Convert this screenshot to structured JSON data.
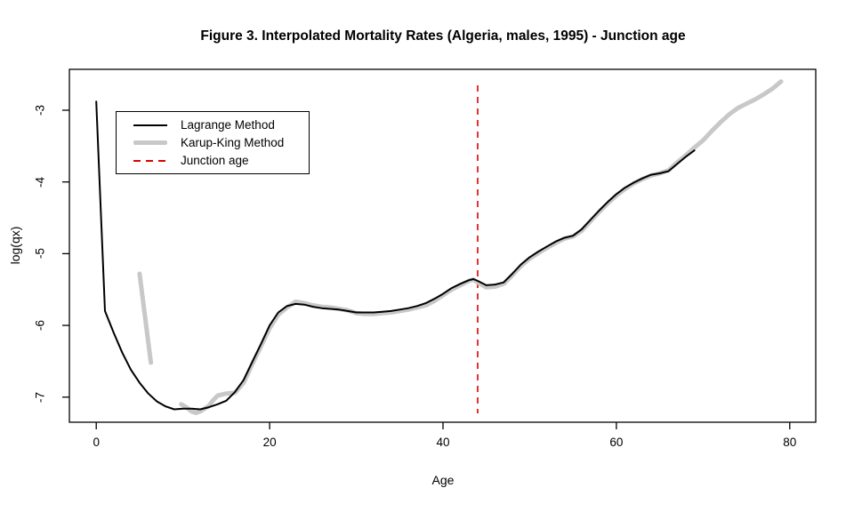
{
  "page": {
    "background": "#ffffff"
  },
  "chart_data": {
    "type": "line",
    "title": "Figure 3. Interpolated Mortality Rates (Algeria, males, 1995) - Junction age",
    "xlabel": "Age",
    "ylabel": "log(qx)",
    "x_ticks": [
      0,
      20,
      40,
      60,
      80
    ],
    "y_ticks": [
      -3,
      -4,
      -5,
      -6,
      -7
    ],
    "xlim": [
      -3.1,
      83.0
    ],
    "ylim": [
      -7.35,
      -2.43
    ],
    "grid": false,
    "legend_position": "top-left",
    "junction_age": 44,
    "colors": {
      "lagrange": "#000000",
      "karup_king": "#c8c8c8",
      "junction": "#dd0000",
      "axis": "#000000"
    },
    "series": [
      {
        "name": "Lagrange Method",
        "color": "#000000",
        "line_width": 2,
        "segments": [
          [
            [
              0,
              -2.88
            ],
            [
              1,
              -5.8
            ],
            [
              2,
              -6.1
            ],
            [
              3,
              -6.38
            ],
            [
              4,
              -6.62
            ],
            [
              5,
              -6.8
            ],
            [
              6,
              -6.95
            ],
            [
              7,
              -7.06
            ],
            [
              8,
              -7.13
            ],
            [
              9,
              -7.17
            ],
            [
              10,
              -7.16
            ],
            [
              11,
              -7.16
            ],
            [
              12,
              -7.17
            ],
            [
              13,
              -7.14
            ],
            [
              14,
              -7.1
            ],
            [
              15,
              -7.05
            ],
            [
              16,
              -6.93
            ],
            [
              17,
              -6.76
            ],
            [
              18,
              -6.51
            ],
            [
              19,
              -6.26
            ],
            [
              20,
              -6.0
            ],
            [
              21,
              -5.82
            ],
            [
              22,
              -5.73
            ],
            [
              23,
              -5.7
            ],
            [
              24,
              -5.71
            ],
            [
              25,
              -5.74
            ],
            [
              26,
              -5.76
            ],
            [
              27,
              -5.77
            ],
            [
              28,
              -5.78
            ],
            [
              29,
              -5.8
            ],
            [
              30,
              -5.82
            ],
            [
              31,
              -5.82
            ],
            [
              32,
              -5.82
            ],
            [
              33,
              -5.81
            ],
            [
              34,
              -5.8
            ],
            [
              35,
              -5.78
            ],
            [
              36,
              -5.76
            ],
            [
              37,
              -5.73
            ],
            [
              38,
              -5.69
            ],
            [
              39,
              -5.63
            ],
            [
              40,
              -5.56
            ],
            [
              41,
              -5.48
            ],
            [
              42,
              -5.42
            ],
            [
              43,
              -5.37
            ],
            [
              43.5,
              -5.355
            ],
            [
              44,
              -5.38
            ],
            [
              45,
              -5.44
            ],
            [
              46,
              -5.43
            ],
            [
              47,
              -5.4
            ],
            [
              48,
              -5.28
            ],
            [
              49,
              -5.15
            ],
            [
              50,
              -5.05
            ],
            [
              51,
              -4.97
            ],
            [
              52,
              -4.9
            ],
            [
              53,
              -4.83
            ],
            [
              54,
              -4.78
            ],
            [
              55,
              -4.75
            ],
            [
              56,
              -4.66
            ],
            [
              57,
              -4.53
            ],
            [
              58,
              -4.4
            ],
            [
              59,
              -4.28
            ],
            [
              60,
              -4.17
            ],
            [
              61,
              -4.08
            ],
            [
              62,
              -4.01
            ],
            [
              63,
              -3.95
            ],
            [
              64,
              -3.9
            ],
            [
              65,
              -3.88
            ],
            [
              66,
              -3.85
            ],
            [
              67,
              -3.75
            ],
            [
              68,
              -3.65
            ],
            [
              69,
              -3.56
            ]
          ]
        ]
      },
      {
        "name": "Karup-King Method",
        "color": "#c8c8c8",
        "line_width": 5,
        "segments": [
          [
            [
              5,
              -5.28
            ],
            [
              6.3,
              -6.52
            ]
          ],
          [
            [
              9.8,
              -7.1
            ],
            [
              10.5,
              -7.15
            ],
            [
              11,
              -7.2
            ],
            [
              11.5,
              -7.22
            ],
            [
              12,
              -7.2
            ],
            [
              13,
              -7.12
            ],
            [
              13.5,
              -7.04
            ],
            [
              14,
              -6.98
            ],
            [
              15,
              -6.95
            ],
            [
              16,
              -6.94
            ],
            [
              17,
              -6.8
            ],
            [
              18,
              -6.54
            ],
            [
              19,
              -6.29
            ],
            [
              20,
              -6.04
            ],
            [
              21,
              -5.85
            ],
            [
              22,
              -5.75
            ],
            [
              23,
              -5.67
            ],
            [
              24,
              -5.69
            ],
            [
              25,
              -5.72
            ],
            [
              26,
              -5.74
            ],
            [
              27,
              -5.75
            ],
            [
              28,
              -5.77
            ],
            [
              29,
              -5.79
            ],
            [
              30,
              -5.83
            ],
            [
              31,
              -5.84
            ],
            [
              32,
              -5.84
            ],
            [
              33,
              -5.83
            ],
            [
              34,
              -5.82
            ],
            [
              35,
              -5.8
            ],
            [
              36,
              -5.78
            ],
            [
              37,
              -5.75
            ],
            [
              38,
              -5.72
            ],
            [
              39,
              -5.66
            ],
            [
              40,
              -5.58
            ],
            [
              41,
              -5.5
            ],
            [
              42,
              -5.44
            ],
            [
              43,
              -5.38
            ],
            [
              43.5,
              -5.36
            ],
            [
              44,
              -5.4
            ],
            [
              45,
              -5.47
            ],
            [
              46,
              -5.46
            ],
            [
              47,
              -5.42
            ],
            [
              48,
              -5.3
            ],
            [
              49,
              -5.17
            ],
            [
              50,
              -5.07
            ],
            [
              51,
              -4.99
            ],
            [
              52,
              -4.92
            ],
            [
              53,
              -4.85
            ],
            [
              54,
              -4.79
            ],
            [
              55,
              -4.76
            ],
            [
              56,
              -4.68
            ],
            [
              57,
              -4.55
            ],
            [
              58,
              -4.42
            ],
            [
              59,
              -4.3
            ],
            [
              60,
              -4.19
            ],
            [
              61,
              -4.1
            ],
            [
              62,
              -4.02
            ],
            [
              63,
              -3.96
            ],
            [
              64,
              -3.91
            ],
            [
              65,
              -3.88
            ],
            [
              66,
              -3.84
            ],
            [
              67,
              -3.73
            ],
            [
              68,
              -3.63
            ],
            [
              69,
              -3.52
            ],
            [
              70,
              -3.42
            ],
            [
              71,
              -3.29
            ],
            [
              72,
              -3.17
            ],
            [
              73,
              -3.06
            ],
            [
              74,
              -2.97
            ],
            [
              75,
              -2.91
            ],
            [
              76,
              -2.85
            ],
            [
              77,
              -2.78
            ],
            [
              78,
              -2.7
            ],
            [
              79,
              -2.6
            ]
          ]
        ]
      },
      {
        "name": "Junction age",
        "color": "#dd0000",
        "line_style": "dashed",
        "line_width": 1.6,
        "vline_x": 44
      }
    ]
  }
}
